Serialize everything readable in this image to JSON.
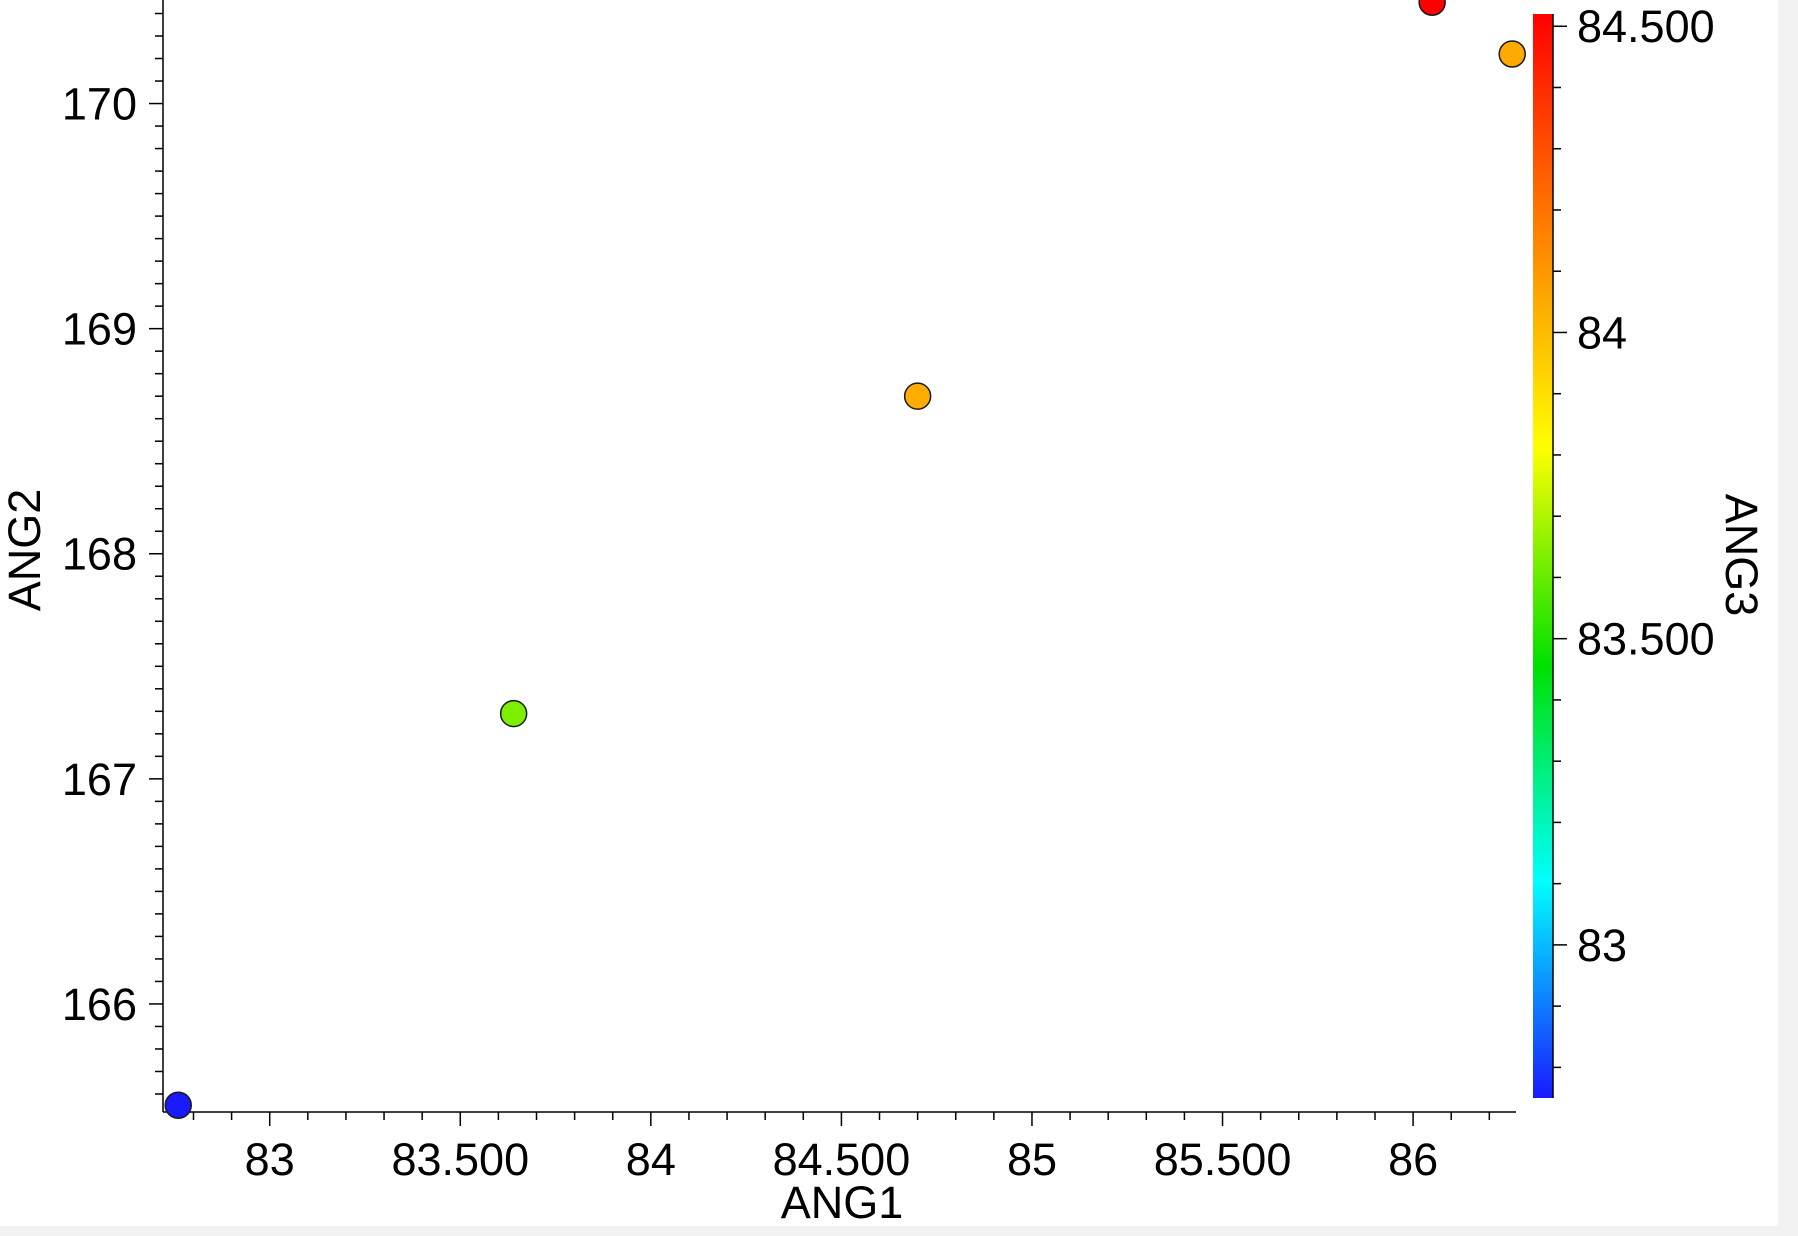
{
  "chart_data": {
    "type": "scatter",
    "title": "",
    "xlabel": "ANG1",
    "ylabel": "ANG2",
    "colorbar_label": "ANG3",
    "xlim": [
      82.72,
      86.27
    ],
    "ylim": [
      165.52,
      170.46
    ],
    "colorbar_range": [
      82.75,
      84.52
    ],
    "x_ticks": [
      {
        "value": 83,
        "label": "83"
      },
      {
        "value": 83.5,
        "label": "83.500"
      },
      {
        "value": 84,
        "label": "84"
      },
      {
        "value": 84.5,
        "label": "84.500"
      },
      {
        "value": 85,
        "label": "85"
      },
      {
        "value": 85.5,
        "label": "85.500"
      },
      {
        "value": 86,
        "label": "86"
      }
    ],
    "y_ticks": [
      {
        "value": 166,
        "label": "166"
      },
      {
        "value": 167,
        "label": "167"
      },
      {
        "value": 168,
        "label": "168"
      },
      {
        "value": 169,
        "label": "169"
      },
      {
        "value": 170,
        "label": "170"
      }
    ],
    "colorbar_ticks": [
      {
        "value": 83,
        "label": "83"
      },
      {
        "value": 83.5,
        "label": "83.500"
      },
      {
        "value": 84,
        "label": "84"
      },
      {
        "value": 84.5,
        "label": "84.500"
      }
    ],
    "points": [
      {
        "x": 82.76,
        "y": 165.55,
        "c": 82.75
      },
      {
        "x": 83.64,
        "y": 167.29,
        "c": 83.63
      },
      {
        "x": 84.7,
        "y": 168.7,
        "c": 84.04
      },
      {
        "x": 86.05,
        "y": 170.45,
        "c": 84.52
      },
      {
        "x": 86.26,
        "y": 170.22,
        "c": 84.05
      }
    ],
    "grid": false,
    "colormap": [
      "#1a1aff",
      "#00ffff",
      "#00e000",
      "#ffff00",
      "#ff8000",
      "#ff0000"
    ]
  }
}
